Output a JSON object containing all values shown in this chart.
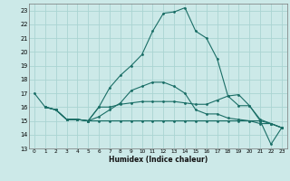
{
  "xlabel": "Humidex (Indice chaleur)",
  "xlim": [
    -0.5,
    23.5
  ],
  "ylim": [
    13,
    23.5
  ],
  "yticks": [
    13,
    14,
    15,
    16,
    17,
    18,
    19,
    20,
    21,
    22,
    23
  ],
  "xticks": [
    0,
    1,
    2,
    3,
    4,
    5,
    6,
    7,
    8,
    9,
    10,
    11,
    12,
    13,
    14,
    15,
    16,
    17,
    18,
    19,
    20,
    21,
    22,
    23
  ],
  "bg_color": "#cce9e8",
  "grid_color": "#aad4d2",
  "line_color": "#1a6e66",
  "lines": [
    {
      "x": [
        0,
        1,
        2,
        3,
        4,
        5,
        6,
        7,
        8,
        9,
        10,
        11,
        12,
        13,
        14,
        15,
        16,
        17,
        18,
        19,
        20,
        21,
        22,
        23
      ],
      "y": [
        17.0,
        16.0,
        15.8,
        15.1,
        15.1,
        15.0,
        16.0,
        17.4,
        18.3,
        19.0,
        19.8,
        21.5,
        22.8,
        22.9,
        23.2,
        21.5,
        21.0,
        19.5,
        16.8,
        16.1,
        16.1,
        15.0,
        13.3,
        14.5
      ]
    },
    {
      "x": [
        1,
        2,
        3,
        4,
        5,
        6,
        7,
        8,
        9,
        10,
        11,
        12,
        13,
        14,
        15,
        16,
        17,
        18,
        19,
        20,
        21,
        22,
        23
      ],
      "y": [
        16.0,
        15.8,
        15.1,
        15.1,
        15.0,
        16.0,
        16.0,
        16.2,
        16.3,
        16.4,
        16.4,
        16.4,
        16.4,
        16.3,
        16.2,
        16.2,
        16.5,
        16.8,
        16.9,
        16.1,
        15.1,
        14.8,
        14.5
      ]
    },
    {
      "x": [
        1,
        2,
        3,
        4,
        5,
        6,
        7,
        8,
        9,
        10,
        11,
        12,
        13,
        14,
        15,
        16,
        17,
        18,
        19,
        20,
        21,
        22,
        23
      ],
      "y": [
        16.0,
        15.8,
        15.1,
        15.1,
        15.0,
        15.3,
        15.8,
        16.3,
        17.2,
        17.5,
        17.8,
        17.8,
        17.5,
        17.0,
        15.8,
        15.5,
        15.5,
        15.2,
        15.1,
        15.0,
        14.8,
        14.8,
        14.5
      ]
    },
    {
      "x": [
        1,
        2,
        3,
        4,
        5,
        6,
        7,
        8,
        9,
        10,
        11,
        12,
        13,
        14,
        15,
        16,
        17,
        18,
        19,
        20,
        21,
        22,
        23
      ],
      "y": [
        16.0,
        15.8,
        15.1,
        15.1,
        15.0,
        15.0,
        15.0,
        15.0,
        15.0,
        15.0,
        15.0,
        15.0,
        15.0,
        15.0,
        15.0,
        15.0,
        15.0,
        15.0,
        15.0,
        15.0,
        15.0,
        14.8,
        14.5
      ]
    }
  ]
}
